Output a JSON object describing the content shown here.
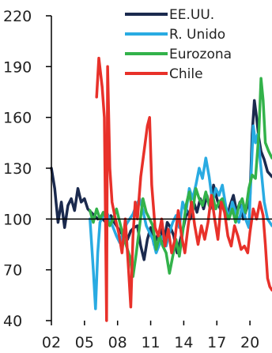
{
  "chart_data": {
    "type": "line",
    "title": "",
    "xlabel": "",
    "ylabel": "",
    "xlim": [
      2002,
      2022
    ],
    "ylim": [
      40,
      220
    ],
    "x_tick_values": [
      2002,
      2005,
      2008,
      2011,
      2014,
      2017,
      2020
    ],
    "x_tick_labels": [
      "02",
      "05",
      "08",
      "11",
      "14",
      "17",
      "20"
    ],
    "y_ticks": [
      40,
      70,
      100,
      130,
      160,
      190,
      220
    ],
    "y_tick_labels": [
      "40",
      "70",
      "100",
      "130",
      "160",
      "190",
      "220"
    ],
    "reference_line": 100,
    "grid": false,
    "legend_position": "top-right",
    "series": [
      {
        "name": "EE.UU.",
        "color": "#1b2a4e",
        "points": [
          [
            2002.0,
            130
          ],
          [
            2002.3,
            118
          ],
          [
            2002.6,
            98
          ],
          [
            2002.9,
            110
          ],
          [
            2003.2,
            95
          ],
          [
            2003.5,
            108
          ],
          [
            2003.8,
            112
          ],
          [
            2004.1,
            105
          ],
          [
            2004.4,
            118
          ],
          [
            2004.7,
            110
          ],
          [
            2005.0,
            112
          ],
          [
            2005.3,
            106
          ],
          [
            2005.6,
            104
          ],
          [
            2005.9,
            102
          ],
          [
            2006.2,
            100
          ],
          [
            2006.5,
            101
          ],
          [
            2006.8,
            99
          ],
          [
            2007.1,
            97
          ],
          [
            2007.4,
            102
          ],
          [
            2007.7,
            98
          ],
          [
            2008.0,
            95
          ],
          [
            2008.3,
            92
          ],
          [
            2008.6,
            90
          ],
          [
            2008.9,
            88
          ],
          [
            2009.2,
            93
          ],
          [
            2009.5,
            95
          ],
          [
            2009.8,
            96
          ],
          [
            2010.1,
            84
          ],
          [
            2010.4,
            76
          ],
          [
            2010.7,
            88
          ],
          [
            2011.0,
            95
          ],
          [
            2011.3,
            85
          ],
          [
            2011.6,
            90
          ],
          [
            2011.9,
            94
          ],
          [
            2012.2,
            86
          ],
          [
            2012.5,
            98
          ],
          [
            2012.8,
            95
          ],
          [
            2013.1,
            90
          ],
          [
            2013.4,
            80
          ],
          [
            2013.7,
            88
          ],
          [
            2014.0,
            96
          ],
          [
            2014.3,
            105
          ],
          [
            2014.6,
            100
          ],
          [
            2014.9,
            110
          ],
          [
            2015.2,
            104
          ],
          [
            2015.5,
            112
          ],
          [
            2015.8,
            106
          ],
          [
            2016.1,
            114
          ],
          [
            2016.4,
            106
          ],
          [
            2016.7,
            120
          ],
          [
            2017.0,
            112
          ],
          [
            2017.3,
            106
          ],
          [
            2017.6,
            110
          ],
          [
            2017.9,
            100
          ],
          [
            2018.2,
            108
          ],
          [
            2018.5,
            114
          ],
          [
            2018.8,
            104
          ],
          [
            2019.1,
            110
          ],
          [
            2019.4,
            100
          ],
          [
            2019.7,
            106
          ],
          [
            2020.0,
            112
          ],
          [
            2020.2,
            150
          ],
          [
            2020.4,
            170
          ],
          [
            2020.6,
            160
          ],
          [
            2020.8,
            148
          ],
          [
            2021.0,
            140
          ],
          [
            2021.3,
            135
          ],
          [
            2021.6,
            128
          ],
          [
            2022.0,
            125
          ]
        ]
      },
      {
        "name": "R. Unido",
        "color": "#29abe2",
        "points": [
          [
            2005.5,
            100
          ],
          [
            2005.8,
            70
          ],
          [
            2006.0,
            47
          ],
          [
            2006.2,
            80
          ],
          [
            2006.4,
            98
          ],
          [
            2006.7,
            102
          ],
          [
            2007.0,
            104
          ],
          [
            2007.3,
            100
          ],
          [
            2007.6,
            95
          ],
          [
            2007.9,
            90
          ],
          [
            2008.2,
            86
          ],
          [
            2008.5,
            92
          ],
          [
            2008.8,
            97
          ],
          [
            2009.1,
            100
          ],
          [
            2009.4,
            103
          ],
          [
            2009.7,
            108
          ],
          [
            2010.0,
            112
          ],
          [
            2010.3,
            105
          ],
          [
            2010.6,
            96
          ],
          [
            2010.9,
            92
          ],
          [
            2011.2,
            88
          ],
          [
            2011.5,
            80
          ],
          [
            2011.8,
            85
          ],
          [
            2012.1,
            90
          ],
          [
            2012.4,
            84
          ],
          [
            2012.7,
            92
          ],
          [
            2013.0,
            98
          ],
          [
            2013.3,
            102
          ],
          [
            2013.6,
            95
          ],
          [
            2013.9,
            110
          ],
          [
            2014.2,
            104
          ],
          [
            2014.5,
            118
          ],
          [
            2014.8,
            112
          ],
          [
            2015.1,
            120
          ],
          [
            2015.4,
            130
          ],
          [
            2015.7,
            124
          ],
          [
            2016.0,
            136
          ],
          [
            2016.3,
            125
          ],
          [
            2016.6,
            110
          ],
          [
            2016.9,
            118
          ],
          [
            2017.2,
            114
          ],
          [
            2017.5,
            120
          ],
          [
            2017.8,
            108
          ],
          [
            2018.1,
            100
          ],
          [
            2018.4,
            110
          ],
          [
            2018.7,
            104
          ],
          [
            2019.0,
            98
          ],
          [
            2019.3,
            108
          ],
          [
            2019.6,
            100
          ],
          [
            2019.9,
            95
          ],
          [
            2020.1,
            125
          ],
          [
            2020.3,
            155
          ],
          [
            2020.5,
            145
          ],
          [
            2020.7,
            150
          ],
          [
            2021.0,
            130
          ],
          [
            2021.3,
            110
          ],
          [
            2021.6,
            100
          ],
          [
            2022.0,
            96
          ]
        ]
      },
      {
        "name": "Eurozona",
        "color": "#33b24a",
        "points": [
          [
            2005.5,
            105
          ],
          [
            2005.8,
            98
          ],
          [
            2006.1,
            106
          ],
          [
            2006.4,
            100
          ],
          [
            2006.7,
            104
          ],
          [
            2007.0,
            100
          ],
          [
            2007.3,
            96
          ],
          [
            2007.6,
            100
          ],
          [
            2007.9,
            106
          ],
          [
            2008.2,
            98
          ],
          [
            2008.5,
            90
          ],
          [
            2008.8,
            84
          ],
          [
            2009.1,
            78
          ],
          [
            2009.4,
            66
          ],
          [
            2009.7,
            80
          ],
          [
            2010.0,
            96
          ],
          [
            2010.3,
            112
          ],
          [
            2010.6,
            104
          ],
          [
            2010.9,
            100
          ],
          [
            2011.2,
            96
          ],
          [
            2011.5,
            82
          ],
          [
            2011.8,
            90
          ],
          [
            2012.1,
            84
          ],
          [
            2012.4,
            80
          ],
          [
            2012.7,
            68
          ],
          [
            2013.0,
            78
          ],
          [
            2013.3,
            88
          ],
          [
            2013.6,
            78
          ],
          [
            2013.9,
            92
          ],
          [
            2014.2,
            108
          ],
          [
            2014.5,
            116
          ],
          [
            2014.8,
            104
          ],
          [
            2015.1,
            118
          ],
          [
            2015.4,
            112
          ],
          [
            2015.7,
            108
          ],
          [
            2016.0,
            116
          ],
          [
            2016.3,
            108
          ],
          [
            2016.6,
            114
          ],
          [
            2016.9,
            106
          ],
          [
            2017.2,
            110
          ],
          [
            2017.5,
            112
          ],
          [
            2017.8,
            104
          ],
          [
            2018.1,
            100
          ],
          [
            2018.4,
            106
          ],
          [
            2018.7,
            98
          ],
          [
            2019.0,
            108
          ],
          [
            2019.3,
            112
          ],
          [
            2019.6,
            104
          ],
          [
            2019.9,
            118
          ],
          [
            2020.2,
            126
          ],
          [
            2020.5,
            124
          ],
          [
            2020.8,
            150
          ],
          [
            2021.0,
            183
          ],
          [
            2021.2,
            170
          ],
          [
            2021.4,
            145
          ],
          [
            2021.7,
            140
          ],
          [
            2022.0,
            136
          ]
        ]
      },
      {
        "name": "Chile",
        "color": "#e8312a",
        "points": [
          [
            2006.1,
            172
          ],
          [
            2006.3,
            195
          ],
          [
            2006.6,
            178
          ],
          [
            2006.8,
            160
          ],
          [
            2007.0,
            40
          ],
          [
            2007.1,
            190
          ],
          [
            2007.3,
            130
          ],
          [
            2007.5,
            110
          ],
          [
            2007.8,
            100
          ],
          [
            2008.1,
            92
          ],
          [
            2008.4,
            80
          ],
          [
            2008.7,
            100
          ],
          [
            2009.0,
            70
          ],
          [
            2009.2,
            48
          ],
          [
            2009.4,
            90
          ],
          [
            2009.6,
            110
          ],
          [
            2009.8,
            100
          ],
          [
            2010.1,
            125
          ],
          [
            2010.4,
            140
          ],
          [
            2010.7,
            155
          ],
          [
            2010.9,
            160
          ],
          [
            2011.1,
            120
          ],
          [
            2011.4,
            95
          ],
          [
            2011.7,
            90
          ],
          [
            2012.0,
            100
          ],
          [
            2012.3,
            84
          ],
          [
            2012.6,
            94
          ],
          [
            2012.9,
            80
          ],
          [
            2013.2,
            88
          ],
          [
            2013.5,
            105
          ],
          [
            2013.8,
            90
          ],
          [
            2014.1,
            80
          ],
          [
            2014.4,
            96
          ],
          [
            2014.7,
            110
          ],
          [
            2015.0,
            96
          ],
          [
            2015.3,
            85
          ],
          [
            2015.6,
            96
          ],
          [
            2015.9,
            88
          ],
          [
            2016.2,
            98
          ],
          [
            2016.5,
            114
          ],
          [
            2016.8,
            100
          ],
          [
            2017.1,
            88
          ],
          [
            2017.4,
            110
          ],
          [
            2017.7,
            104
          ],
          [
            2018.0,
            90
          ],
          [
            2018.3,
            84
          ],
          [
            2018.6,
            96
          ],
          [
            2018.9,
            90
          ],
          [
            2019.2,
            82
          ],
          [
            2019.5,
            84
          ],
          [
            2019.8,
            80
          ],
          [
            2020.0,
            92
          ],
          [
            2020.3,
            106
          ],
          [
            2020.6,
            100
          ],
          [
            2020.9,
            110
          ],
          [
            2021.2,
            102
          ],
          [
            2021.4,
            85
          ],
          [
            2021.6,
            65
          ],
          [
            2021.8,
            60
          ],
          [
            2022.0,
            58
          ]
        ]
      }
    ]
  }
}
